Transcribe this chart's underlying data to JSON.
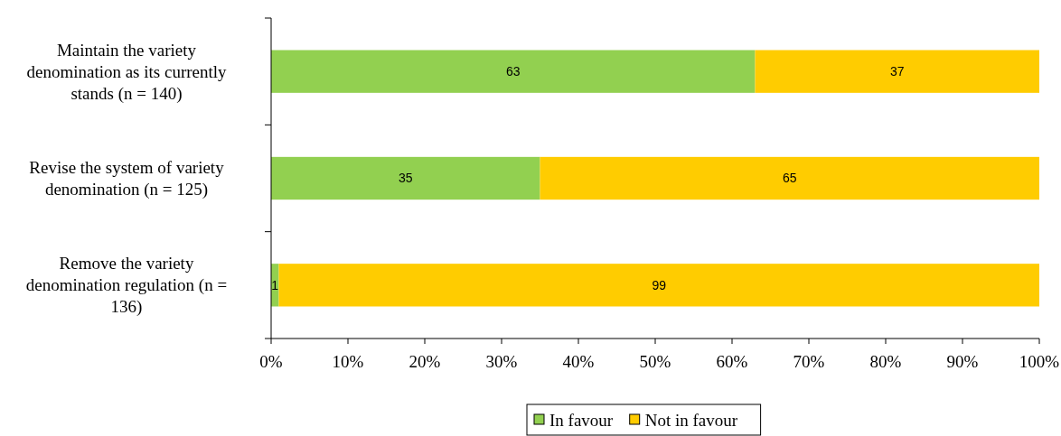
{
  "chart_data": {
    "type": "bar",
    "orientation": "horizontal",
    "stacked": true,
    "categories": [
      "Maintain the variety denomination as its currently stands (n = 140)",
      "Revise the system of variety denomination (n = 125)",
      "Remove the variety denomination regulation (n = 136)"
    ],
    "series": [
      {
        "name": "In favour",
        "color": "#92d050",
        "values": [
          63,
          35,
          1
        ]
      },
      {
        "name": "Not in favour",
        "color": "#ffcc00",
        "values": [
          37,
          65,
          99
        ]
      }
    ],
    "xlim": [
      0,
      100
    ],
    "xticks": [
      {
        "value": 0,
        "label": "0%"
      },
      {
        "value": 10,
        "label": "10%"
      },
      {
        "value": 20,
        "label": "20%"
      },
      {
        "value": 30,
        "label": "30%"
      },
      {
        "value": 40,
        "label": "40%"
      },
      {
        "value": 50,
        "label": "50%"
      },
      {
        "value": 60,
        "label": "60%"
      },
      {
        "value": 70,
        "label": "70%"
      },
      {
        "value": 80,
        "label": "80%"
      },
      {
        "value": 90,
        "label": "90%"
      },
      {
        "value": 100,
        "label": "100%"
      }
    ],
    "data_labels": true,
    "legend": "bottom",
    "grid": false
  }
}
